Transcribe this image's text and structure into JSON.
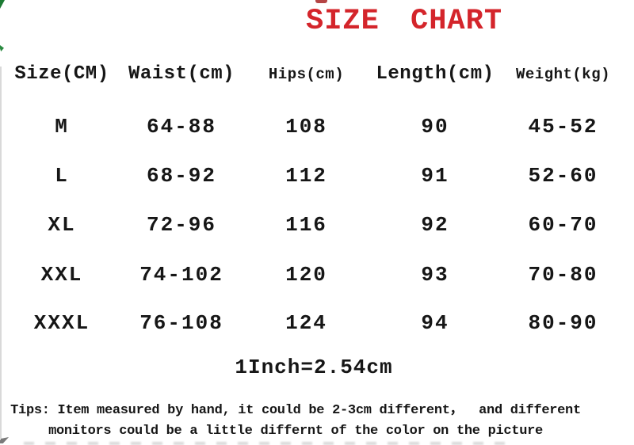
{
  "header": {
    "title": "SIZE CHART"
  },
  "chart_data": {
    "type": "table",
    "title": "SIZE CHART",
    "columns": [
      "Size(CM)",
      "Waist(cm)",
      "Hips(cm)",
      "Length(cm)",
      "Weight(kg)"
    ],
    "rows": [
      [
        "M",
        "64-88",
        "108",
        "90",
        "45-52"
      ],
      [
        "L",
        "68-92",
        "112",
        "91",
        "52-60"
      ],
      [
        "XL",
        "72-96",
        "116",
        "92",
        "60-70"
      ],
      [
        "XXL",
        "74-102",
        "120",
        "93",
        "70-80"
      ],
      [
        "XXXL",
        "76-108",
        "124",
        "94",
        "80-90"
      ]
    ],
    "note": "1Inch=2.54cm"
  },
  "footer": {
    "inch_note": "1Inch=2.54cm",
    "tips_line1": "Tips: Item measured by hand, it could be 2-3cm different，  and different",
    "tips_line2": "monitors could be a little differnt of the color on the picture"
  },
  "colors": {
    "title_red": "#d4252b",
    "text": "#161616",
    "artifact_green": "#1c7a33",
    "background": "#ffffff"
  }
}
